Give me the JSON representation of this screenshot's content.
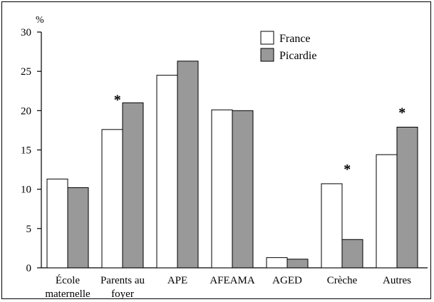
{
  "chart_data": {
    "type": "bar",
    "ylabel": "%",
    "ylim": [
      0,
      30
    ],
    "yticks": [
      0,
      5,
      10,
      15,
      20,
      25,
      30
    ],
    "categories": [
      [
        "École",
        "maternelle"
      ],
      [
        "Parents au",
        "foyer"
      ],
      [
        "APE"
      ],
      [
        "AFEAMA"
      ],
      [
        "AGED"
      ],
      [
        "Crèche"
      ],
      [
        "Autres"
      ]
    ],
    "series": [
      {
        "name": "France",
        "color": "#ffffff",
        "values": [
          11.3,
          17.6,
          24.5,
          20.1,
          1.3,
          10.7,
          14.4
        ]
      },
      {
        "name": "Picardie",
        "color": "#999999",
        "values": [
          10.2,
          21.0,
          26.3,
          20.0,
          1.1,
          3.6,
          17.9
        ]
      }
    ],
    "significance_marker": "*",
    "significant": [
      false,
      true,
      false,
      false,
      false,
      true,
      true
    ],
    "legend": {
      "position": "top-right"
    }
  }
}
